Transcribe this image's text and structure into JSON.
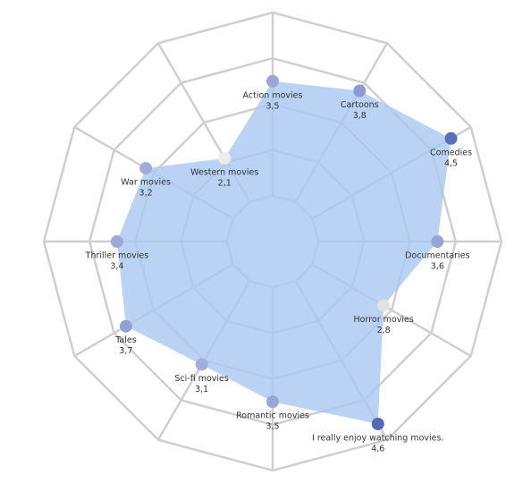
{
  "chart_data": {
    "type": "radar",
    "categories": [
      "Action movies",
      "Cartoons",
      "Comedies",
      "Documentaries",
      "Horror movies",
      "I really enjoy watching movies.",
      "Romantic movies",
      "Sci-fi movies",
      "Tales",
      "Thriller movies",
      "War movies",
      "Western movies"
    ],
    "values": [
      3.5,
      3.8,
      4.5,
      3.6,
      2.8,
      4.6,
      3.5,
      3.1,
      3.7,
      3.4,
      3.2,
      2.1
    ],
    "value_labels": [
      "3,5",
      "3,8",
      "4,5",
      "3,6",
      "2,8",
      "4,6",
      "3,5",
      "3,1",
      "3,7",
      "3,4",
      "3,2",
      "2,1"
    ],
    "point_colors": [
      "#9aa6d6",
      "#8f9bd0",
      "#5b6fb8",
      "#98a4d4",
      "#e2e2e2",
      "#5468b3",
      "#9aa6d6",
      "#a3addb",
      "#94a0d3",
      "#9da8d7",
      "#a1acda",
      "#ececec"
    ],
    "color": "#a9c8f1",
    "ylim": [
      0,
      5
    ],
    "yticks": [
      1,
      2,
      3,
      4,
      5
    ],
    "grid": true
  }
}
